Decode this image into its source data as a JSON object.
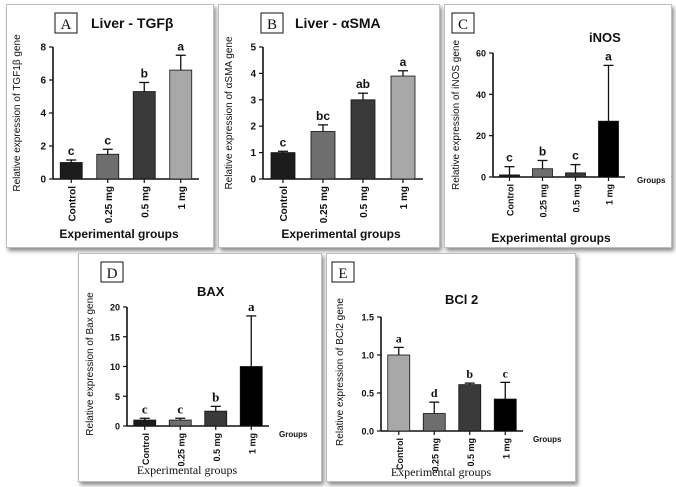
{
  "figure": {
    "panels": [
      {
        "letter": "A",
        "title": "Liver - TGFβ"
      },
      {
        "letter": "B",
        "title": "Liver - αSMA"
      },
      {
        "letter": "C",
        "title": "iNOS"
      },
      {
        "letter": "D",
        "title": "BAX"
      },
      {
        "letter": "E",
        "title": "BCl 2"
      }
    ]
  },
  "chart_data": [
    {
      "type": "bar",
      "title": "Liver - TGFβ",
      "ylabel": "Relative expression of TGF1β gene",
      "xlabel": "Experimental groups",
      "categories": [
        "Control",
        "0.25 mg",
        "0.5 mg",
        "1 mg"
      ],
      "ylim": [
        0,
        8
      ],
      "yticks": [
        0,
        2,
        4,
        6,
        8
      ],
      "series": [
        {
          "values": [
            1.0,
            1.5,
            5.3,
            6.6
          ],
          "errors": [
            0.15,
            0.3,
            0.55,
            0.9
          ],
          "letters": [
            "c",
            "c",
            "b",
            "a"
          ],
          "colors": [
            "#1c1c1c",
            "#6e6e6e",
            "#3a3a3a",
            "#a8a8a8"
          ]
        }
      ]
    },
    {
      "type": "bar",
      "title": "Liver - αSMA",
      "ylabel": "Relative expression of αSMA gene",
      "xlabel": "Experimental groups",
      "categories": [
        "Control",
        "0.25 mg",
        "0.5 mg",
        "1 mg"
      ],
      "ylim": [
        0,
        5
      ],
      "yticks": [
        0,
        1,
        2,
        3,
        4,
        5
      ],
      "series": [
        {
          "values": [
            1.0,
            1.8,
            3.0,
            3.9
          ],
          "errors": [
            0.05,
            0.25,
            0.25,
            0.2
          ],
          "letters": [
            "c",
            "bc",
            "ab",
            "a"
          ],
          "colors": [
            "#1c1c1c",
            "#6e6e6e",
            "#3a3a3a",
            "#a8a8a8"
          ]
        }
      ]
    },
    {
      "type": "bar",
      "title": "iNOS",
      "ylabel": "Relative expression of iNOS  gene",
      "xlabel": "Experimental groups",
      "xaxis_end_label": "Groups",
      "categories": [
        "Control",
        "0.25 mg",
        "0.5 mg",
        "1 mg"
      ],
      "ylim": [
        0,
        60
      ],
      "yticks": [
        0,
        20,
        40,
        60
      ],
      "series": [
        {
          "values": [
            1,
            4,
            2,
            27
          ],
          "errors": [
            4,
            4,
            4,
            27
          ],
          "letters": [
            "c",
            "b",
            "c",
            "a"
          ],
          "colors": [
            "#1c1c1c",
            "#6e6e6e",
            "#3a3a3a",
            "#000000"
          ]
        }
      ]
    },
    {
      "type": "bar",
      "title": "BAX",
      "ylabel": "Relative expression of Bax  gene",
      "xlabel": "Experimental groups",
      "xaxis_end_label": "Groups",
      "categories": [
        "Control",
        "0.25 mg",
        "0.5 mg",
        "1 mg"
      ],
      "ylim": [
        0,
        20
      ],
      "yticks": [
        0,
        5,
        10,
        15,
        20
      ],
      "series": [
        {
          "values": [
            1.0,
            1.0,
            2.5,
            10.0
          ],
          "errors": [
            0.3,
            0.3,
            0.8,
            8.5
          ],
          "letters": [
            "c",
            "c",
            "b",
            "a"
          ],
          "colors": [
            "#1c1c1c",
            "#6e6e6e",
            "#3a3a3a",
            "#000000"
          ]
        }
      ]
    },
    {
      "type": "bar",
      "title": "BCl 2",
      "ylabel": "Relative expression of BCl2 gene",
      "xlabel": "Experimental groups",
      "xaxis_end_label": "Groups",
      "categories": [
        "Control",
        "0.25 mg",
        "0.5 mg",
        "1 mg"
      ],
      "ylim": [
        0,
        1.5
      ],
      "yticks": [
        "0.0",
        "0.5",
        "1.0",
        "1.5"
      ],
      "series": [
        {
          "values": [
            1.0,
            0.23,
            0.61,
            0.42
          ],
          "errors": [
            0.1,
            0.15,
            0.02,
            0.22
          ],
          "letters": [
            "a",
            "d",
            "b",
            "c"
          ],
          "colors": [
            "#a8a8a8",
            "#6e6e6e",
            "#3a3a3a",
            "#000000"
          ]
        }
      ]
    }
  ]
}
